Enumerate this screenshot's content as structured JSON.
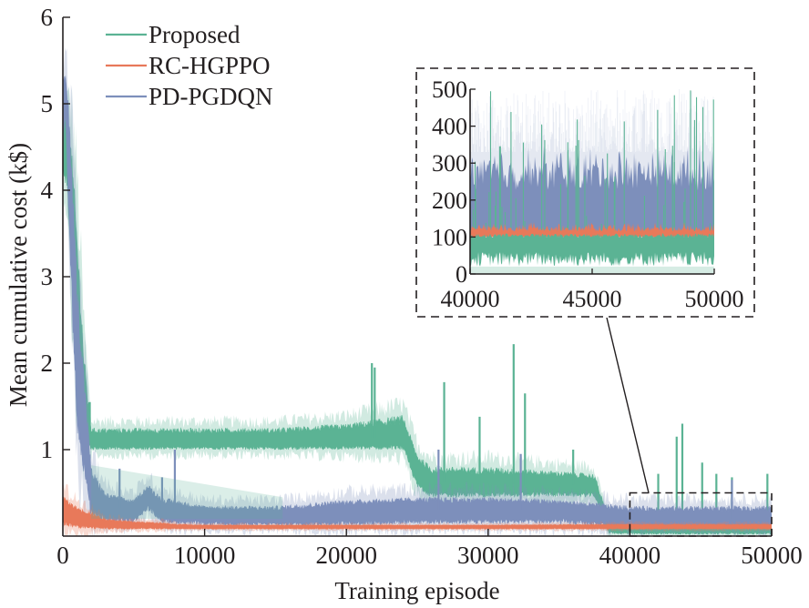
{
  "chart_data": {
    "type": "line",
    "title": "",
    "xlabel": "Training episode",
    "ylabel": "Mean cumulative cost (k$)",
    "xlim": [
      0,
      50000
    ],
    "ylim": [
      0,
      6
    ],
    "x_ticks": [
      0,
      10000,
      20000,
      30000,
      40000,
      50000
    ],
    "x_tick_labels": [
      "0",
      "10000",
      "20000",
      "30000",
      "40000",
      "50000"
    ],
    "y_ticks": [
      1,
      2,
      3,
      4,
      5,
      6
    ],
    "y_tick_labels": [
      "1",
      "2",
      "3",
      "4",
      "5",
      "6"
    ],
    "grid": false,
    "legend_position": "top-left",
    "series": [
      {
        "name": "Proposed",
        "color": "#5bb394",
        "description": "noisy training curve with shaded variance band",
        "x": [
          0,
          300,
          600,
          1000,
          1500,
          2000,
          5000,
          10000,
          15000,
          20000,
          24000,
          25000,
          26000,
          30000,
          35000,
          37500,
          38500,
          40000,
          45000,
          50000
        ],
        "mean": [
          4.6,
          4.4,
          3.9,
          2.6,
          1.5,
          1.1,
          1.1,
          1.1,
          1.1,
          1.12,
          1.15,
          0.75,
          0.62,
          0.6,
          0.6,
          0.58,
          0.1,
          0.08,
          0.08,
          0.08
        ],
        "upper": [
          4.9,
          4.8,
          4.5,
          3.6,
          2.1,
          1.25,
          1.25,
          1.25,
          1.25,
          1.3,
          1.4,
          0.95,
          0.8,
          0.8,
          0.75,
          0.72,
          0.2,
          0.15,
          0.15,
          0.15
        ],
        "lower": [
          4.2,
          4.0,
          3.0,
          1.8,
          1.05,
          1.0,
          1.0,
          1.0,
          1.0,
          1.0,
          1.0,
          0.55,
          0.45,
          0.45,
          0.46,
          0.45,
          0.03,
          0.02,
          0.02,
          0.02
        ],
        "spikes": [
          {
            "x": 1900,
            "y": 1.55
          },
          {
            "x": 8000,
            "y": 1.2
          },
          {
            "x": 21800,
            "y": 2.0
          },
          {
            "x": 22000,
            "y": 1.95
          },
          {
            "x": 26900,
            "y": 1.78
          },
          {
            "x": 29400,
            "y": 1.38
          },
          {
            "x": 31800,
            "y": 2.22
          },
          {
            "x": 32600,
            "y": 1.65
          },
          {
            "x": 36000,
            "y": 1.0
          },
          {
            "x": 42000,
            "y": 0.72
          },
          {
            "x": 43300,
            "y": 1.15
          },
          {
            "x": 43700,
            "y": 1.3
          },
          {
            "x": 45100,
            "y": 0.85
          },
          {
            "x": 46100,
            "y": 0.72
          },
          {
            "x": 47200,
            "y": 0.68
          },
          {
            "x": 49700,
            "y": 0.72
          }
        ]
      },
      {
        "name": "RC-HGPPO",
        "color": "#e8795a",
        "description": "low-cost curve converging early",
        "x": [
          0,
          300,
          1000,
          2000,
          3000,
          5000,
          7000,
          8000,
          10000,
          20000,
          30000,
          40000,
          50000
        ],
        "mean": [
          0.3,
          0.28,
          0.22,
          0.18,
          0.15,
          0.13,
          0.12,
          0.11,
          0.11,
          0.11,
          0.11,
          0.11,
          0.11
        ],
        "upper": [
          0.48,
          0.42,
          0.34,
          0.28,
          0.2,
          0.17,
          0.16,
          0.14,
          0.13,
          0.13,
          0.13,
          0.14,
          0.14
        ],
        "lower": [
          0.12,
          0.1,
          0.09,
          0.08,
          0.08,
          0.08,
          0.08,
          0.08,
          0.08,
          0.08,
          0.08,
          0.08,
          0.08
        ]
      },
      {
        "name": "PD-PGDQN",
        "color": "#7d8fbb",
        "description": "noisy training curve converging to about 0.2",
        "x": [
          0,
          200,
          500,
          1000,
          2000,
          3000,
          5000,
          6000,
          7000,
          10000,
          15000,
          20000,
          25000,
          30000,
          35000,
          40000,
          45000,
          50000
        ],
        "mean": [
          5.0,
          5.2,
          4.0,
          2.0,
          0.5,
          0.35,
          0.3,
          0.45,
          0.3,
          0.25,
          0.22,
          0.27,
          0.3,
          0.3,
          0.3,
          0.2,
          0.2,
          0.2
        ],
        "upper": [
          5.3,
          5.33,
          4.8,
          3.0,
          0.8,
          0.5,
          0.42,
          0.6,
          0.45,
          0.35,
          0.35,
          0.42,
          0.45,
          0.45,
          0.42,
          0.35,
          0.35,
          0.35
        ],
        "lower": [
          4.6,
          4.8,
          3.2,
          1.2,
          0.2,
          0.15,
          0.15,
          0.3,
          0.15,
          0.12,
          0.12,
          0.12,
          0.14,
          0.14,
          0.14,
          0.1,
          0.1,
          0.1
        ],
        "spikes": [
          {
            "x": 4000,
            "y": 0.78
          },
          {
            "x": 7000,
            "y": 0.68
          },
          {
            "x": 7900,
            "y": 1.0
          },
          {
            "x": 26500,
            "y": 1.0
          },
          {
            "x": 32300,
            "y": 0.95
          },
          {
            "x": 47200,
            "y": 0.65
          }
        ]
      }
    ],
    "inset": {
      "xlim": [
        40000,
        50000
      ],
      "ylim": [
        0,
        500
      ],
      "x_ticks": [
        40000,
        45000,
        50000
      ],
      "x_tick_labels": [
        "40000",
        "45000",
        "50000"
      ],
      "y_ticks": [
        0,
        100,
        200,
        300,
        400,
        500
      ],
      "y_tick_labels": [
        "0",
        "100",
        "200",
        "300",
        "400",
        "500"
      ],
      "zoom_region": {
        "x": [
          40000,
          50000
        ],
        "y": [
          0,
          0.5
        ]
      },
      "series": [
        {
          "name": "Proposed",
          "mean": 70,
          "lower": 20,
          "upper": 110,
          "peak_max": 500
        },
        {
          "name": "RC-HGPPO",
          "mean": 115,
          "lower": 100,
          "upper": 140
        },
        {
          "name": "PD-PGDQN",
          "mean": 200,
          "lower": 100,
          "upper": 330,
          "peak_max": 500
        }
      ]
    }
  }
}
